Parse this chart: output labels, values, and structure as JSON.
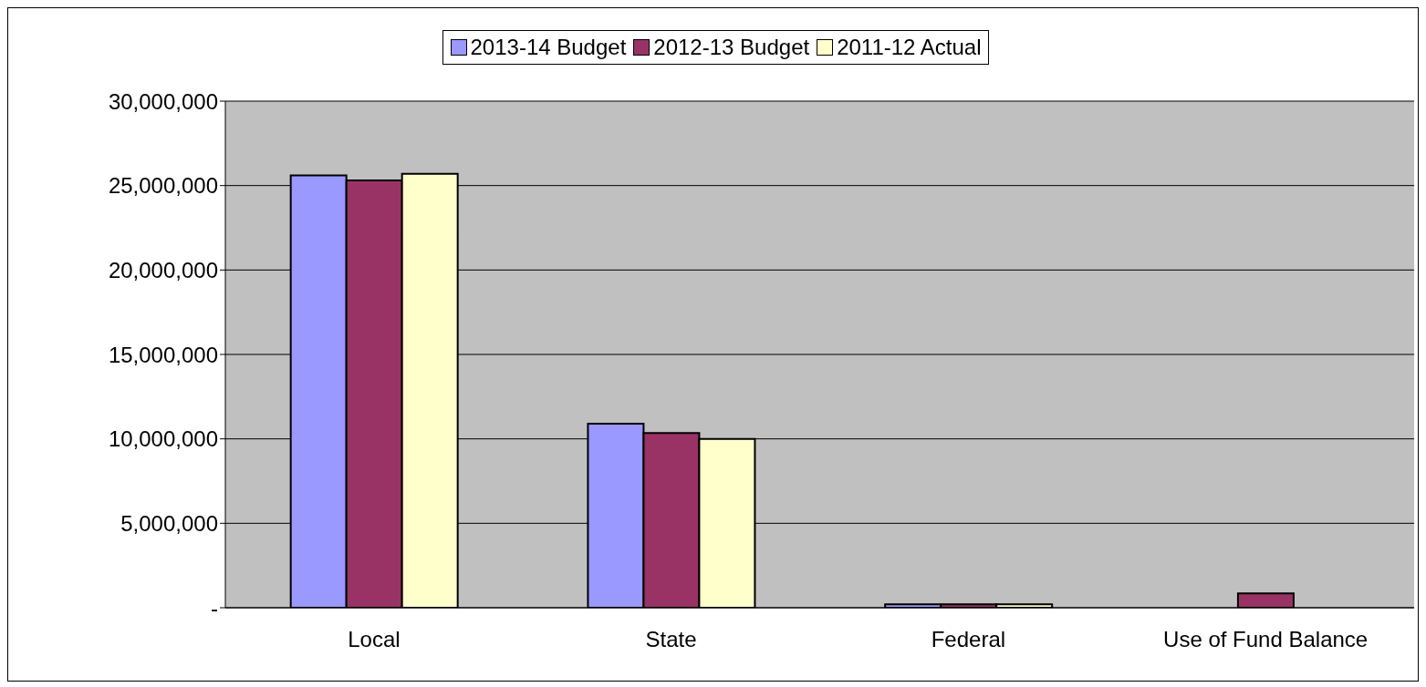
{
  "chart_data": {
    "type": "bar",
    "categories": [
      "Local",
      "State",
      "Federal",
      "Use of Fund Balance"
    ],
    "series": [
      {
        "name": "2013-14 Budget",
        "color": "#9999ff",
        "values": [
          25600000,
          10900000,
          200000,
          null
        ]
      },
      {
        "name": "2012-13 Budget",
        "color": "#993366",
        "values": [
          25300000,
          10350000,
          200000,
          850000
        ]
      },
      {
        "name": "2011-12 Actual",
        "color": "#ffffcc",
        "values": [
          25700000,
          10000000,
          200000,
          null
        ]
      }
    ],
    "ylim": [
      0,
      30000000
    ],
    "yticks": [
      {
        "value": 0,
        "label": "-"
      },
      {
        "value": 5000000,
        "label": "5,000,000"
      },
      {
        "value": 10000000,
        "label": "10,000,000"
      },
      {
        "value": 15000000,
        "label": "15,000,000"
      },
      {
        "value": 20000000,
        "label": "20,000,000"
      },
      {
        "value": 25000000,
        "label": "25,000,000"
      },
      {
        "value": 30000000,
        "label": "30,000,000"
      }
    ],
    "grid": "y",
    "legend": "top"
  }
}
